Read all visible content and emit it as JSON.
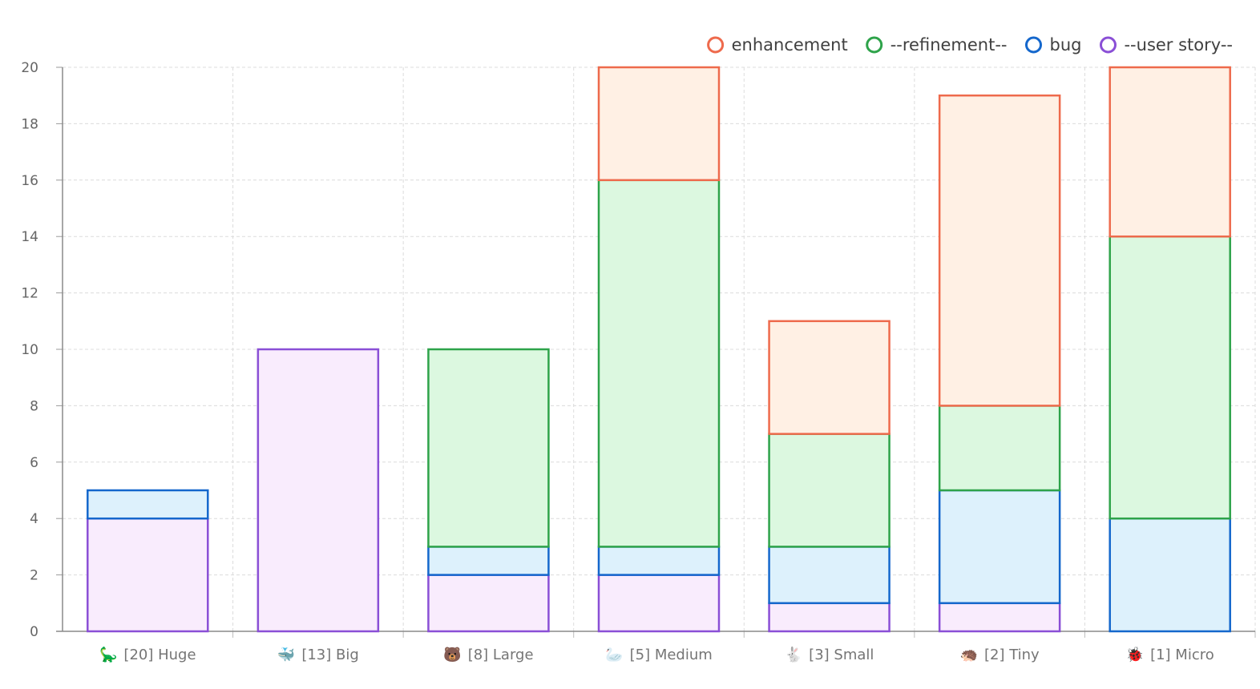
{
  "chart_data": {
    "type": "bar",
    "stacked": true,
    "title": "",
    "xlabel": "",
    "ylabel": "",
    "ylim": [
      0,
      20
    ],
    "yticks": [
      0,
      2,
      4,
      6,
      8,
      10,
      12,
      14,
      16,
      18,
      20
    ],
    "grid": true,
    "legend_position": "top-right",
    "categories": [
      {
        "icon": "🦕",
        "icon_name": "dinosaur-icon",
        "label": "[20] Huge"
      },
      {
        "icon": "🐳",
        "icon_name": "whale-icon",
        "label": "[13] Big"
      },
      {
        "icon": "🐻",
        "icon_name": "bear-icon",
        "label": "[8] Large"
      },
      {
        "icon": "🦢",
        "icon_name": "swan-icon",
        "label": "[5] Medium"
      },
      {
        "icon": "🐇",
        "icon_name": "rabbit-icon",
        "label": "[3] Small"
      },
      {
        "icon": "🦔",
        "icon_name": "hedgehog-icon",
        "label": "[2] Tiny"
      },
      {
        "icon": "🐞",
        "icon_name": "ladybug-icon",
        "label": "[1] Micro"
      }
    ],
    "series": [
      {
        "name": "--user story--",
        "color": "#8a4fd6",
        "fill": "#f9ecfd",
        "values": [
          4,
          10,
          2,
          2,
          1,
          1,
          0
        ]
      },
      {
        "name": "bug",
        "color": "#1467cc",
        "fill": "#ddf1fc",
        "values": [
          1,
          0,
          1,
          1,
          2,
          4,
          4
        ]
      },
      {
        "name": "--refinement--",
        "color": "#2ea34a",
        "fill": "#dcf8e0",
        "values": [
          0,
          0,
          7,
          13,
          4,
          3,
          10
        ]
      },
      {
        "name": "enhancement",
        "color": "#ee6a4c",
        "fill": "#fff0e4",
        "values": [
          0,
          0,
          0,
          4,
          4,
          11,
          6
        ]
      }
    ],
    "legend_order": [
      "enhancement",
      "--refinement--",
      "bug",
      "--user story--"
    ]
  }
}
